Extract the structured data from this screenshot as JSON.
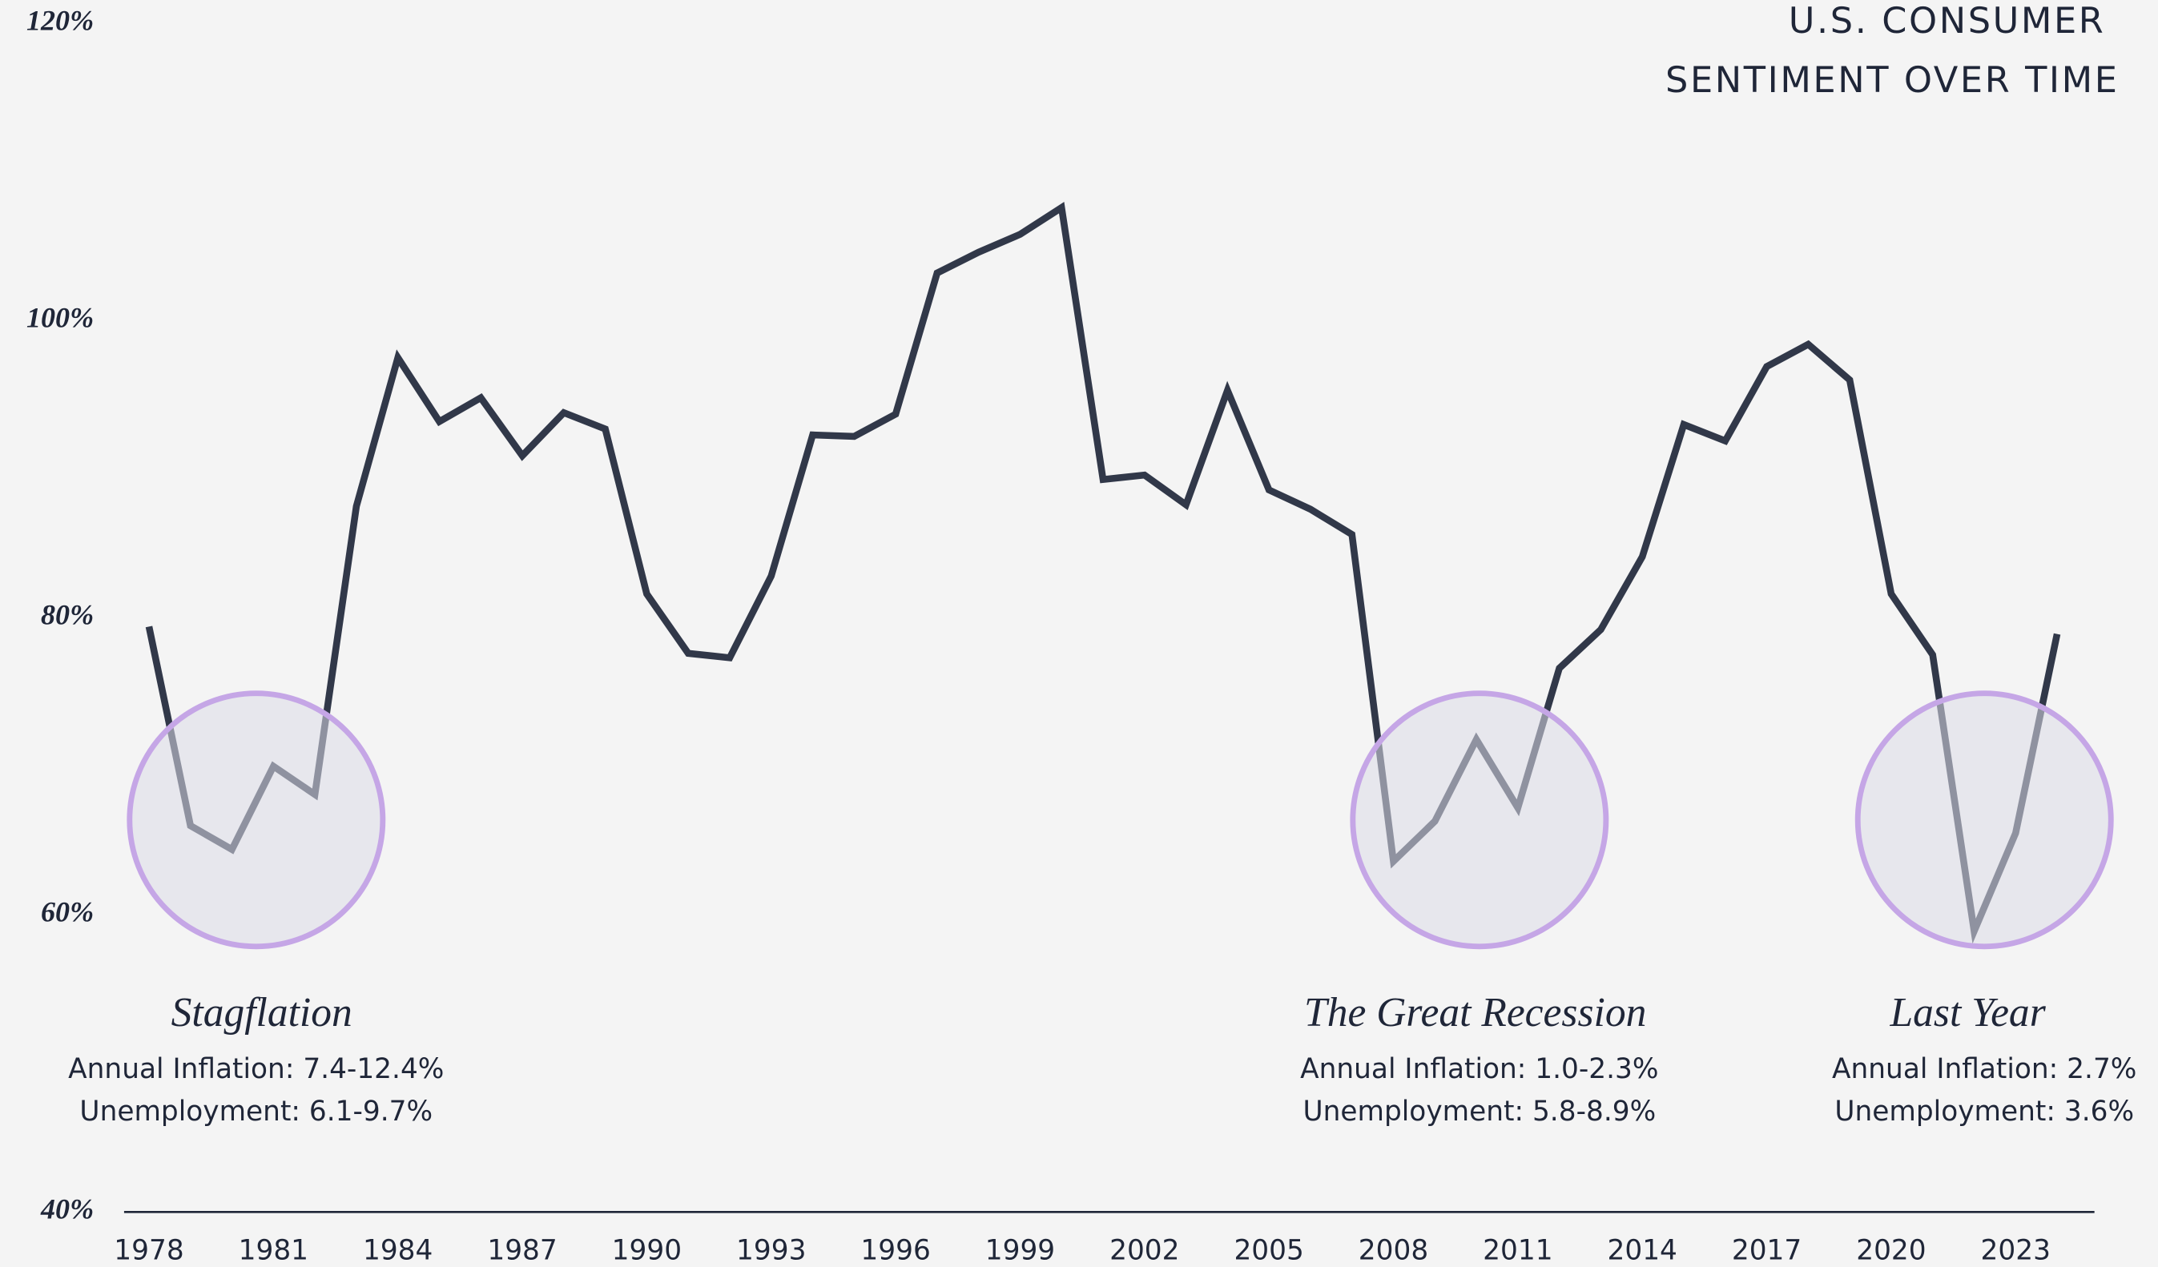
{
  "chart_data": {
    "type": "line",
    "title": [
      "U.S. CONSUMER",
      "SENTIMENT OVER TIME"
    ],
    "x": [
      1978,
      1979,
      1980,
      1981,
      1982,
      1983,
      1984,
      1985,
      1986,
      1987,
      1988,
      1989,
      1990,
      1991,
      1992,
      1993,
      1994,
      1995,
      1996,
      1997,
      1998,
      1999,
      2000,
      2001,
      2002,
      2003,
      2004,
      2005,
      2006,
      2007,
      2008,
      2009,
      2010,
      2011,
      2012,
      2013,
      2014,
      2015,
      2016,
      2017,
      2018,
      2019,
      2020,
      2021,
      2022,
      2023,
      2024
    ],
    "series": [
      {
        "name": "Consumer Sentiment",
        "color": "#313849",
        "values": [
          79.4,
          66.0,
          64.4,
          70.0,
          68.1,
          87.5,
          97.5,
          93.2,
          94.8,
          90.9,
          93.8,
          92.7,
          81.6,
          77.6,
          77.3,
          82.8,
          92.3,
          92.2,
          93.7,
          103.2,
          104.6,
          105.8,
          107.6,
          89.3,
          89.6,
          87.6,
          95.3,
          88.6,
          87.3,
          85.6,
          63.6,
          66.3,
          71.8,
          67.2,
          76.6,
          79.2,
          84.1,
          93.0,
          91.9,
          96.9,
          98.4,
          96.0,
          81.6,
          77.5,
          58.9,
          65.5,
          78.9
        ]
      }
    ],
    "xlim": [
      1977.4,
      2024.9
    ],
    "xticks": [
      1978,
      1981,
      1984,
      1987,
      1990,
      1993,
      1996,
      1999,
      2002,
      2005,
      2008,
      2011,
      2014,
      2017,
      2020,
      2023
    ],
    "ylim": [
      40,
      120
    ],
    "yticks": [
      {
        "value": 40,
        "label": "40%"
      },
      {
        "value": 60,
        "label": "60%"
      },
      {
        "value": 80,
        "label": "80%"
      },
      {
        "value": 100,
        "label": "100%"
      },
      {
        "value": 120,
        "label": "120%"
      }
    ],
    "annotations": [
      {
        "title": "Stagflation",
        "lines": [
          "Annual Inflation: 7.4-12.4%",
          "Unemployment:  6.1-9.7%"
        ]
      },
      {
        "title": "The Great Recession",
        "lines": [
          "Annual Inflation: 1.0-2.3%",
          "Unemployment:  5.8-8.9%"
        ]
      },
      {
        "title": "Last Year",
        "lines": [
          "Annual Inflation: 2.7%",
          "Unemployment:  3.6%"
        ]
      }
    ]
  }
}
